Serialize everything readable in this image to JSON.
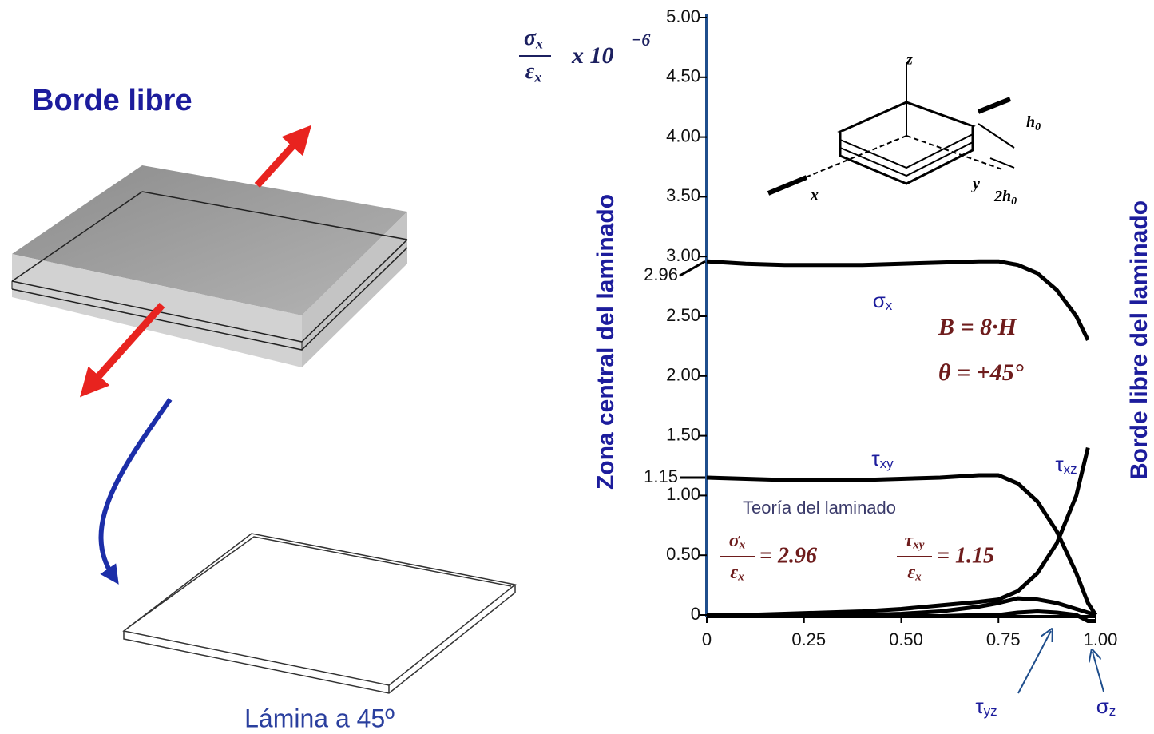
{
  "page_title": "Borde libre",
  "plate_caption": "Lámina a 45º",
  "chart_data": {
    "type": "line",
    "y_label": {
      "numerator": "σx",
      "denominator": "εx",
      "multiplier": "x 10",
      "exponent": "−6"
    },
    "left_side_label": "Zona central  del laminado",
    "right_side_label": "Borde libre del laminado",
    "theory_label": "Teoría del laminado",
    "parameters": [
      "B = 8·H",
      "θ = +45°"
    ],
    "formulas": [
      {
        "numerator": "σx",
        "denominator": "εx",
        "value": "= 2.96"
      },
      {
        "numerator": "τxy",
        "denominator": "εx",
        "value": "= 1.15"
      }
    ],
    "marked_values": [
      2.96,
      1.15
    ],
    "inset_labels": [
      "z",
      "x",
      "y",
      "h0",
      "2h0"
    ],
    "x": [
      0,
      0.1,
      0.2,
      0.3,
      0.4,
      0.5,
      0.6,
      0.7,
      0.75,
      0.8,
      0.85,
      0.9,
      0.95,
      0.98,
      1.0
    ],
    "series": [
      {
        "name": "σx",
        "color": "#000000",
        "values": [
          2.96,
          2.94,
          2.93,
          2.93,
          2.93,
          2.94,
          2.95,
          2.96,
          2.96,
          2.93,
          2.86,
          2.72,
          2.5,
          2.3,
          null
        ]
      },
      {
        "name": "τxy",
        "color": "#000000",
        "values": [
          1.15,
          1.14,
          1.13,
          1.13,
          1.13,
          1.14,
          1.15,
          1.17,
          1.17,
          1.1,
          0.95,
          0.7,
          0.35,
          0.1,
          0
        ]
      },
      {
        "name": "τxz",
        "color": "#000000",
        "values": [
          0,
          0,
          0.01,
          0.02,
          0.03,
          0.05,
          0.08,
          0.11,
          0.13,
          0.2,
          0.35,
          0.6,
          1.0,
          1.4,
          null
        ]
      },
      {
        "name": "τyz",
        "color": "#000000",
        "values": [
          0,
          0,
          0,
          0,
          0,
          0.01,
          0.03,
          0.07,
          0.1,
          0.14,
          0.13,
          0.1,
          0.05,
          0.02,
          0
        ]
      },
      {
        "name": "σz",
        "color": "#000000",
        "values": [
          0,
          0,
          -0.01,
          -0.01,
          -0.01,
          -0.01,
          -0.01,
          0,
          0,
          0.02,
          0.03,
          0.02,
          0,
          -0.05,
          -0.05
        ]
      }
    ],
    "xlim": [
      0,
      1.0
    ],
    "xticks": [
      0,
      0.25,
      {
        "value": 0.5,
        "label": "0.50"
      },
      0.75,
      {
        "value": 1.0,
        "label": "1.00"
      }
    ],
    "ylim": [
      0,
      5.0
    ],
    "yticks": [
      0,
      {
        "value": 0.5,
        "label": "0.50"
      },
      {
        "value": 1.0,
        "label": "1.00"
      },
      {
        "value": 1.5,
        "label": "1.50"
      },
      {
        "value": 2.0,
        "label": "2.00"
      },
      {
        "value": 2.5,
        "label": "2.50"
      },
      {
        "value": 3.0,
        "label": "3.00"
      },
      {
        "value": 3.5,
        "label": "3.50"
      },
      {
        "value": 4.0,
        "label": "4.00"
      },
      {
        "value": 4.5,
        "label": "4.50"
      },
      {
        "value": 5.0,
        "label": "5.00"
      }
    ],
    "grid": false,
    "axis_color": "#1f4e8c",
    "label_color": "#1c1c9c"
  }
}
